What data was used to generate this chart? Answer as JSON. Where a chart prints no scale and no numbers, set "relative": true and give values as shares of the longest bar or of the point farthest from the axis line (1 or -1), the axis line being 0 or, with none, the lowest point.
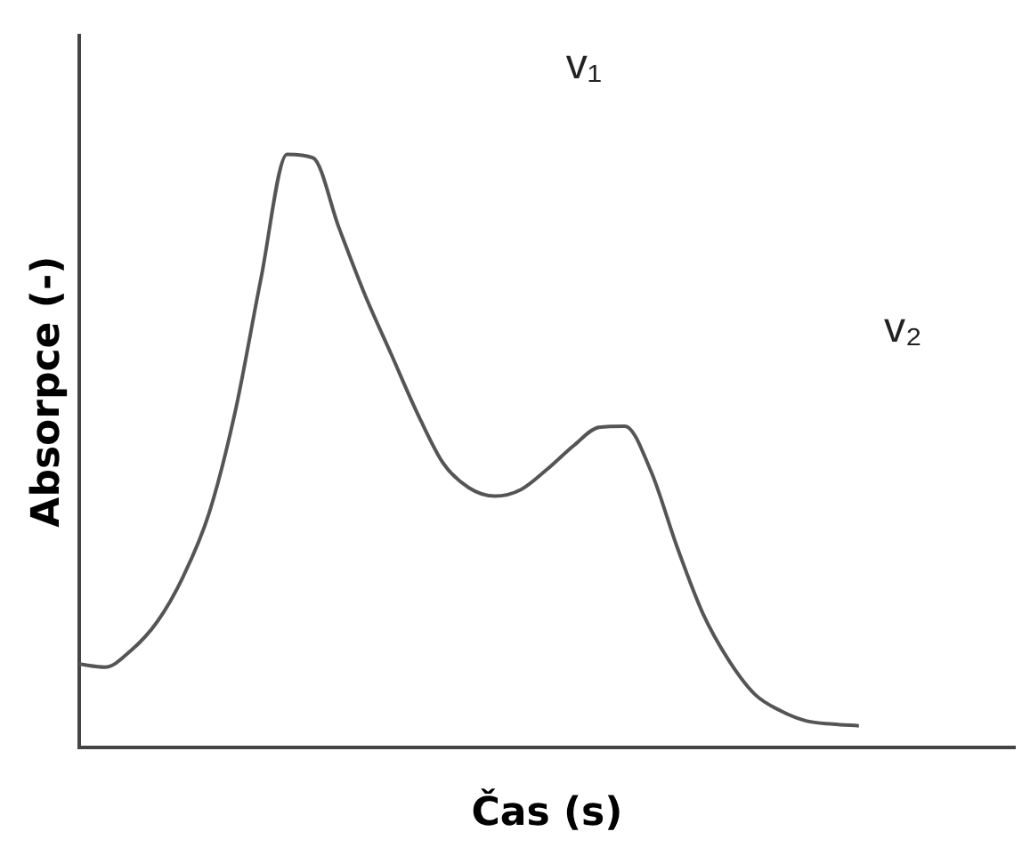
{
  "chart_data": {
    "type": "line",
    "relative": true,
    "xlabel": "Čas (s)",
    "ylabel": "Absorpce (-)",
    "categories": [
      null,
      null,
      null,
      null,
      null,
      null,
      null,
      null,
      null,
      null,
      null,
      null,
      null,
      null,
      null,
      null,
      null,
      null,
      null,
      null,
      null,
      null,
      null,
      null,
      null,
      null,
      null,
      null,
      null,
      null,
      null,
      null,
      null,
      null,
      null,
      null,
      null
    ],
    "series": [
      {
        "color": "#555555",
        "values": [
          0.141,
          0.136,
          0.164,
          0.212,
          0.288,
          0.395,
          0.565,
          0.791,
          1,
          0.994,
          0.876,
          0.763,
          0.664,
          0.565,
          0.48,
          0.438,
          0.424,
          0.435,
          0.469,
          0.508,
          0.54,
          0.542,
          0.466,
          0.339,
          0.226,
          0.147,
          0.09,
          0.062,
          0.045,
          0.04,
          0.037,
          null,
          null,
          null,
          null,
          null,
          null
        ]
      }
    ],
    "annotations": [
      "v₁",
      "v₂"
    ],
    "marker": "none",
    "line_style": "solid",
    "grid": false,
    "legend": false
  }
}
